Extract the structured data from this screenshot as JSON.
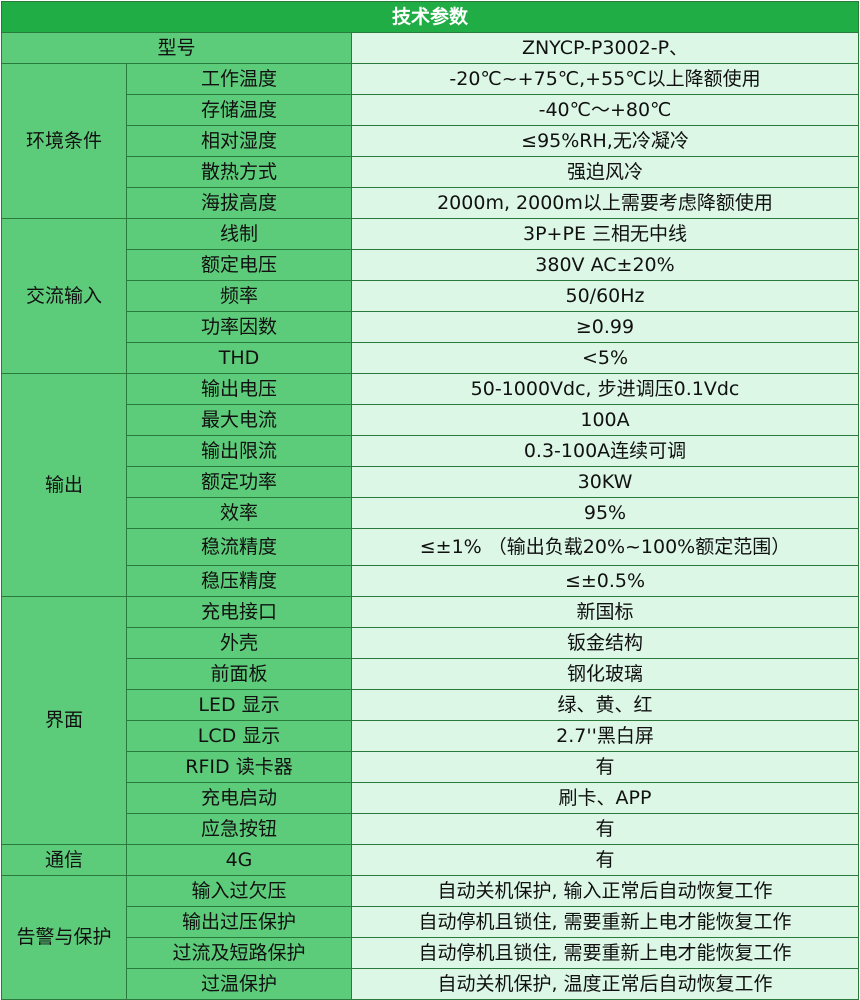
{
  "title": "技术参数",
  "model": {
    "label": "型号",
    "value": "ZNYCP-P3002-P、"
  },
  "environment": {
    "category": "环境条件",
    "rows": [
      {
        "label": "工作温度",
        "value": "-20℃~+75℃,+55℃以上降额使用"
      },
      {
        "label": "存储温度",
        "value": "-40℃～+80℃"
      },
      {
        "label": "相对湿度",
        "value": "≤95%RH,无冷凝冷"
      },
      {
        "label": "散热方式",
        "value": "强迫风冷"
      },
      {
        "label": "海拔高度",
        "value": "2000m, 2000m以上需要考虑降额使用"
      }
    ]
  },
  "ac_input": {
    "category": "交流输入",
    "rows": [
      {
        "label": "线制",
        "value": "3P+PE 三相无中线"
      },
      {
        "label": "额定电压",
        "value": "380V AC±20%"
      },
      {
        "label": "频率",
        "value": "50/60Hz"
      },
      {
        "label": "功率因数",
        "value": "≥0.99"
      },
      {
        "label": "THD",
        "value": "<5%"
      }
    ]
  },
  "output": {
    "category": "输出",
    "rows": [
      {
        "label": "输出电压",
        "value": "50-1000Vdc, 步进调压0.1Vdc"
      },
      {
        "label": "最大电流",
        "value": "100A"
      },
      {
        "label": "输出限流",
        "value": "0.3-100A连续可调"
      },
      {
        "label": "额定功率",
        "value": "30KW"
      },
      {
        "label": "效率",
        "value": "95%"
      },
      {
        "label": "稳流精度",
        "value": "≤±1% （输出负载20%~100%额定范围）"
      },
      {
        "label": "稳压精度",
        "value": "≤±0.5%"
      }
    ]
  },
  "interface": {
    "category": "界面",
    "rows": [
      {
        "label": "充电接口",
        "value": "新国标"
      },
      {
        "label": "外壳",
        "value": "钣金结构"
      },
      {
        "label": "前面板",
        "value": "钢化玻璃"
      },
      {
        "label": "LED 显示",
        "value": "绿、黄、红"
      },
      {
        "label": "LCD 显示",
        "value": "2.7''黑白屏"
      },
      {
        "label": "RFID 读卡器",
        "value": "有"
      },
      {
        "label": "充电启动",
        "value": "刷卡、APP"
      },
      {
        "label": "应急按钮",
        "value": "有"
      }
    ]
  },
  "communication": {
    "category": "通信",
    "rows": [
      {
        "label": "4G",
        "value": "有"
      }
    ]
  },
  "protection": {
    "category": "告警与保护",
    "rows": [
      {
        "label": "输入过欠压",
        "value": "自动关机保护, 输入正常后自动恢复工作"
      },
      {
        "label": "输出过压保护",
        "value": "自动停机且锁住, 需要重新上电才能恢复工作"
      },
      {
        "label": "过流及短路保护",
        "value": "自动停机且锁住, 需要重新上电才能恢复工作"
      },
      {
        "label": "过温保护",
        "value": "自动关机保护, 温度正常后自动恢复工作"
      }
    ]
  }
}
